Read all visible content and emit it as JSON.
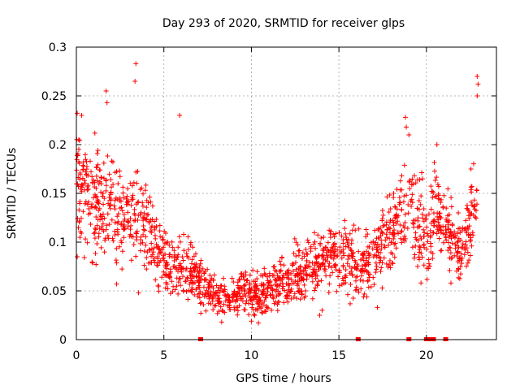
{
  "chart_data": {
    "type": "scatter",
    "title": "Day 293 of 2020, SRMTID for receiver glps",
    "xlabel": "GPS time / hours",
    "ylabel": "SRMTID / TECUs",
    "xlim": [
      0,
      24
    ],
    "ylim": [
      0,
      0.3
    ],
    "x_ticks": [
      0,
      5,
      10,
      15,
      20
    ],
    "y_ticks": [
      0,
      0.05,
      0.1,
      0.15,
      0.2,
      0.25,
      0.3
    ],
    "x_tick_labels": [
      "0",
      "5",
      "10",
      "15",
      "20"
    ],
    "y_tick_labels": [
      "0",
      "0.05",
      "0.1",
      "0.15",
      "0.2",
      "0.25",
      "0.3"
    ],
    "grid": true,
    "marker": "+",
    "color": "#ff0000",
    "series": [
      {
        "name": "SRMTID",
        "profile_hours": [
          0,
          0.5,
          1,
          1.5,
          2,
          2.5,
          3,
          3.5,
          4,
          4.5,
          5,
          5.5,
          6,
          6.5,
          7,
          7.5,
          8,
          8.5,
          9,
          9.5,
          10,
          10.5,
          11,
          11.5,
          12,
          12.5,
          13,
          13.5,
          14,
          14.5,
          15,
          15.5,
          16,
          16.5,
          17,
          17.5,
          18,
          18.5,
          19,
          19.5,
          20,
          20.5,
          21,
          21.5,
          22,
          22.5,
          22.9
        ],
        "profile_values": [
          0.165,
          0.16,
          0.14,
          0.135,
          0.14,
          0.13,
          0.125,
          0.12,
          0.115,
          0.095,
          0.08,
          0.075,
          0.075,
          0.07,
          0.063,
          0.05,
          0.045,
          0.043,
          0.045,
          0.05,
          0.045,
          0.045,
          0.05,
          0.055,
          0.06,
          0.065,
          0.07,
          0.075,
          0.08,
          0.085,
          0.09,
          0.085,
          0.08,
          0.075,
          0.085,
          0.1,
          0.12,
          0.13,
          0.14,
          0.12,
          0.1,
          0.14,
          0.12,
          0.1,
          0.09,
          0.12,
          0.14
        ],
        "spread_values": [
          0.06,
          0.05,
          0.045,
          0.045,
          0.045,
          0.04,
          0.04,
          0.035,
          0.035,
          0.03,
          0.03,
          0.028,
          0.028,
          0.025,
          0.022,
          0.02,
          0.018,
          0.018,
          0.018,
          0.02,
          0.02,
          0.02,
          0.022,
          0.024,
          0.025,
          0.026,
          0.028,
          0.03,
          0.03,
          0.03,
          0.03,
          0.03,
          0.03,
          0.03,
          0.035,
          0.035,
          0.04,
          0.045,
          0.045,
          0.04,
          0.04,
          0.04,
          0.035,
          0.03,
          0.03,
          0.035,
          0.045
        ],
        "outliers": [
          {
            "x": 3.4,
            "y": 0.283
          },
          {
            "x": 3.35,
            "y": 0.265
          },
          {
            "x": 1.7,
            "y": 0.255
          },
          {
            "x": 1.75,
            "y": 0.243
          },
          {
            "x": 0.3,
            "y": 0.23
          },
          {
            "x": 5.9,
            "y": 0.23
          },
          {
            "x": 22.9,
            "y": 0.27
          },
          {
            "x": 22.95,
            "y": 0.262
          },
          {
            "x": 22.9,
            "y": 0.25
          },
          {
            "x": 18.8,
            "y": 0.228
          },
          {
            "x": 18.85,
            "y": 0.218
          },
          {
            "x": 20.6,
            "y": 0.2
          },
          {
            "x": 19.0,
            "y": 0.21
          },
          {
            "x": 3.55,
            "y": 0.048
          },
          {
            "x": 2.3,
            "y": 0.057
          },
          {
            "x": 8.3,
            "y": 0.018
          },
          {
            "x": 13.9,
            "y": 0.025
          },
          {
            "x": 17.2,
            "y": 0.033
          },
          {
            "x": 21.4,
            "y": 0.058
          },
          {
            "x": 0.05,
            "y": 0.085
          }
        ],
        "zero_values_hours": [
          7.1,
          16.1,
          19.0,
          20.0,
          20.2,
          20.4,
          21.1
        ]
      }
    ]
  }
}
